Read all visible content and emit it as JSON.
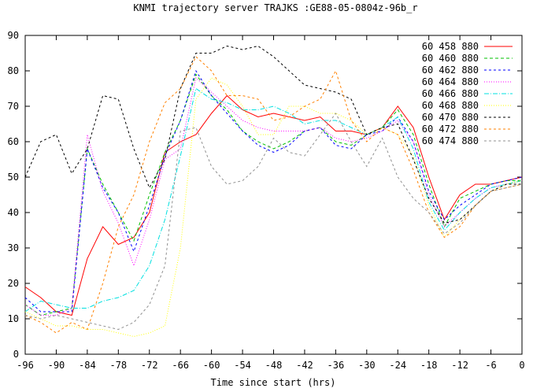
{
  "chart_data": {
    "type": "line",
    "title": "KNMI trajectory server TRAJKS :GE88-05-0804z-96b_r",
    "x_label": "Time since start (hrs)",
    "xlim": [
      -96,
      0
    ],
    "xticks": [
      -96,
      -90,
      -84,
      -78,
      -72,
      -66,
      -60,
      -54,
      -48,
      -42,
      -36,
      -30,
      -24,
      -18,
      -12,
      -6,
      0
    ],
    "ylim": [
      0,
      90
    ],
    "yticks": [
      0,
      10,
      20,
      30,
      40,
      50,
      60,
      70,
      80,
      90
    ],
    "legend": "top-right",
    "x": [
      -96,
      -93,
      -90,
      -87,
      -84,
      -81,
      -78,
      -75,
      -72,
      -69,
      -66,
      -63,
      -60,
      -57,
      -54,
      -51,
      -48,
      -45,
      -42,
      -39,
      -36,
      -33,
      -30,
      -27,
      -24,
      -21,
      -18,
      -15,
      -12,
      -9,
      -6,
      -3,
      0
    ],
    "series": [
      {
        "name": "60 458 880",
        "color": "#ff0000",
        "dash": "none",
        "values": [
          19,
          16,
          12,
          11,
          27,
          36,
          31,
          33,
          40,
          57,
          60,
          62,
          68,
          73,
          69,
          67,
          68,
          67,
          66,
          67,
          63,
          63,
          62,
          64,
          70,
          64,
          50,
          38,
          45,
          48,
          48,
          49,
          50
        ]
      },
      {
        "name": "60 460 880",
        "color": "#00c000",
        "dash": "4,3",
        "values": [
          14,
          11,
          12,
          13,
          58,
          48,
          40,
          32,
          45,
          57,
          66,
          79,
          73,
          69,
          63,
          60,
          58,
          60,
          63,
          64,
          60,
          59,
          62,
          64,
          69,
          62,
          48,
          36,
          44,
          46,
          48,
          49,
          49
        ]
      },
      {
        "name": "60 462 880",
        "color": "#0000ff",
        "dash": "3,3",
        "values": [
          16,
          12,
          12,
          12,
          58,
          47,
          40,
          29,
          42,
          56,
          66,
          80,
          73,
          68,
          63,
          59,
          57,
          59,
          63,
          64,
          59,
          58,
          62,
          63,
          67,
          60,
          46,
          38,
          42,
          45,
          48,
          49,
          50
        ]
      },
      {
        "name": "60 464 880",
        "color": "#ff00ff",
        "dash": "1,2",
        "values": [
          14,
          11,
          11,
          13,
          62,
          46,
          37,
          25,
          38,
          55,
          58,
          78,
          74,
          70,
          66,
          64,
          63,
          63,
          63,
          64,
          61,
          60,
          61,
          63,
          66,
          60,
          45,
          36,
          40,
          44,
          47,
          48,
          49
        ]
      },
      {
        "name": "60 466 880",
        "color": "#00e0e0",
        "dash": "6,2,1,2",
        "values": [
          12,
          15,
          14,
          13,
          13,
          15,
          16,
          18,
          25,
          38,
          56,
          75,
          72,
          71,
          69,
          69,
          70,
          68,
          65,
          66,
          66,
          64,
          62,
          64,
          67,
          58,
          43,
          35,
          40,
          44,
          47,
          48,
          49
        ]
      },
      {
        "name": "60 468 880",
        "color": "#ffff00",
        "dash": "1,2",
        "values": [
          12,
          10,
          8,
          8,
          7,
          7,
          6,
          5,
          6,
          8,
          30,
          72,
          78,
          76,
          70,
          62,
          62,
          70,
          70,
          68,
          68,
          66,
          62,
          64,
          62,
          56,
          42,
          33,
          38,
          42,
          46,
          48,
          49
        ]
      },
      {
        "name": "60 470 880",
        "color": "#000000",
        "dash": "3,3",
        "values": [
          50,
          60,
          62,
          51,
          58,
          73,
          72,
          58,
          47,
          55,
          75,
          85,
          85,
          87,
          86,
          87,
          84,
          80,
          76,
          75,
          74,
          72,
          62,
          64,
          65,
          55,
          44,
          37,
          38,
          42,
          46,
          48,
          48
        ]
      },
      {
        "name": "60 472 880",
        "color": "#ff8000",
        "dash": "3,3",
        "values": [
          11,
          9,
          6,
          9,
          7,
          20,
          36,
          45,
          60,
          71,
          75,
          84,
          80,
          73,
          73,
          72,
          66,
          67,
          70,
          72,
          80,
          66,
          60,
          64,
          62,
          52,
          40,
          33,
          36,
          42,
          46,
          47,
          48
        ]
      },
      {
        "name": "60 474 880",
        "color": "#909090",
        "dash": "3,3",
        "values": [
          11,
          10,
          11,
          10,
          9,
          8,
          7,
          9,
          14,
          25,
          63,
          64,
          53,
          48,
          49,
          53,
          61,
          57,
          56,
          62,
          68,
          60,
          53,
          61,
          50,
          44,
          40,
          34,
          37,
          42,
          46,
          47,
          48
        ]
      }
    ]
  }
}
